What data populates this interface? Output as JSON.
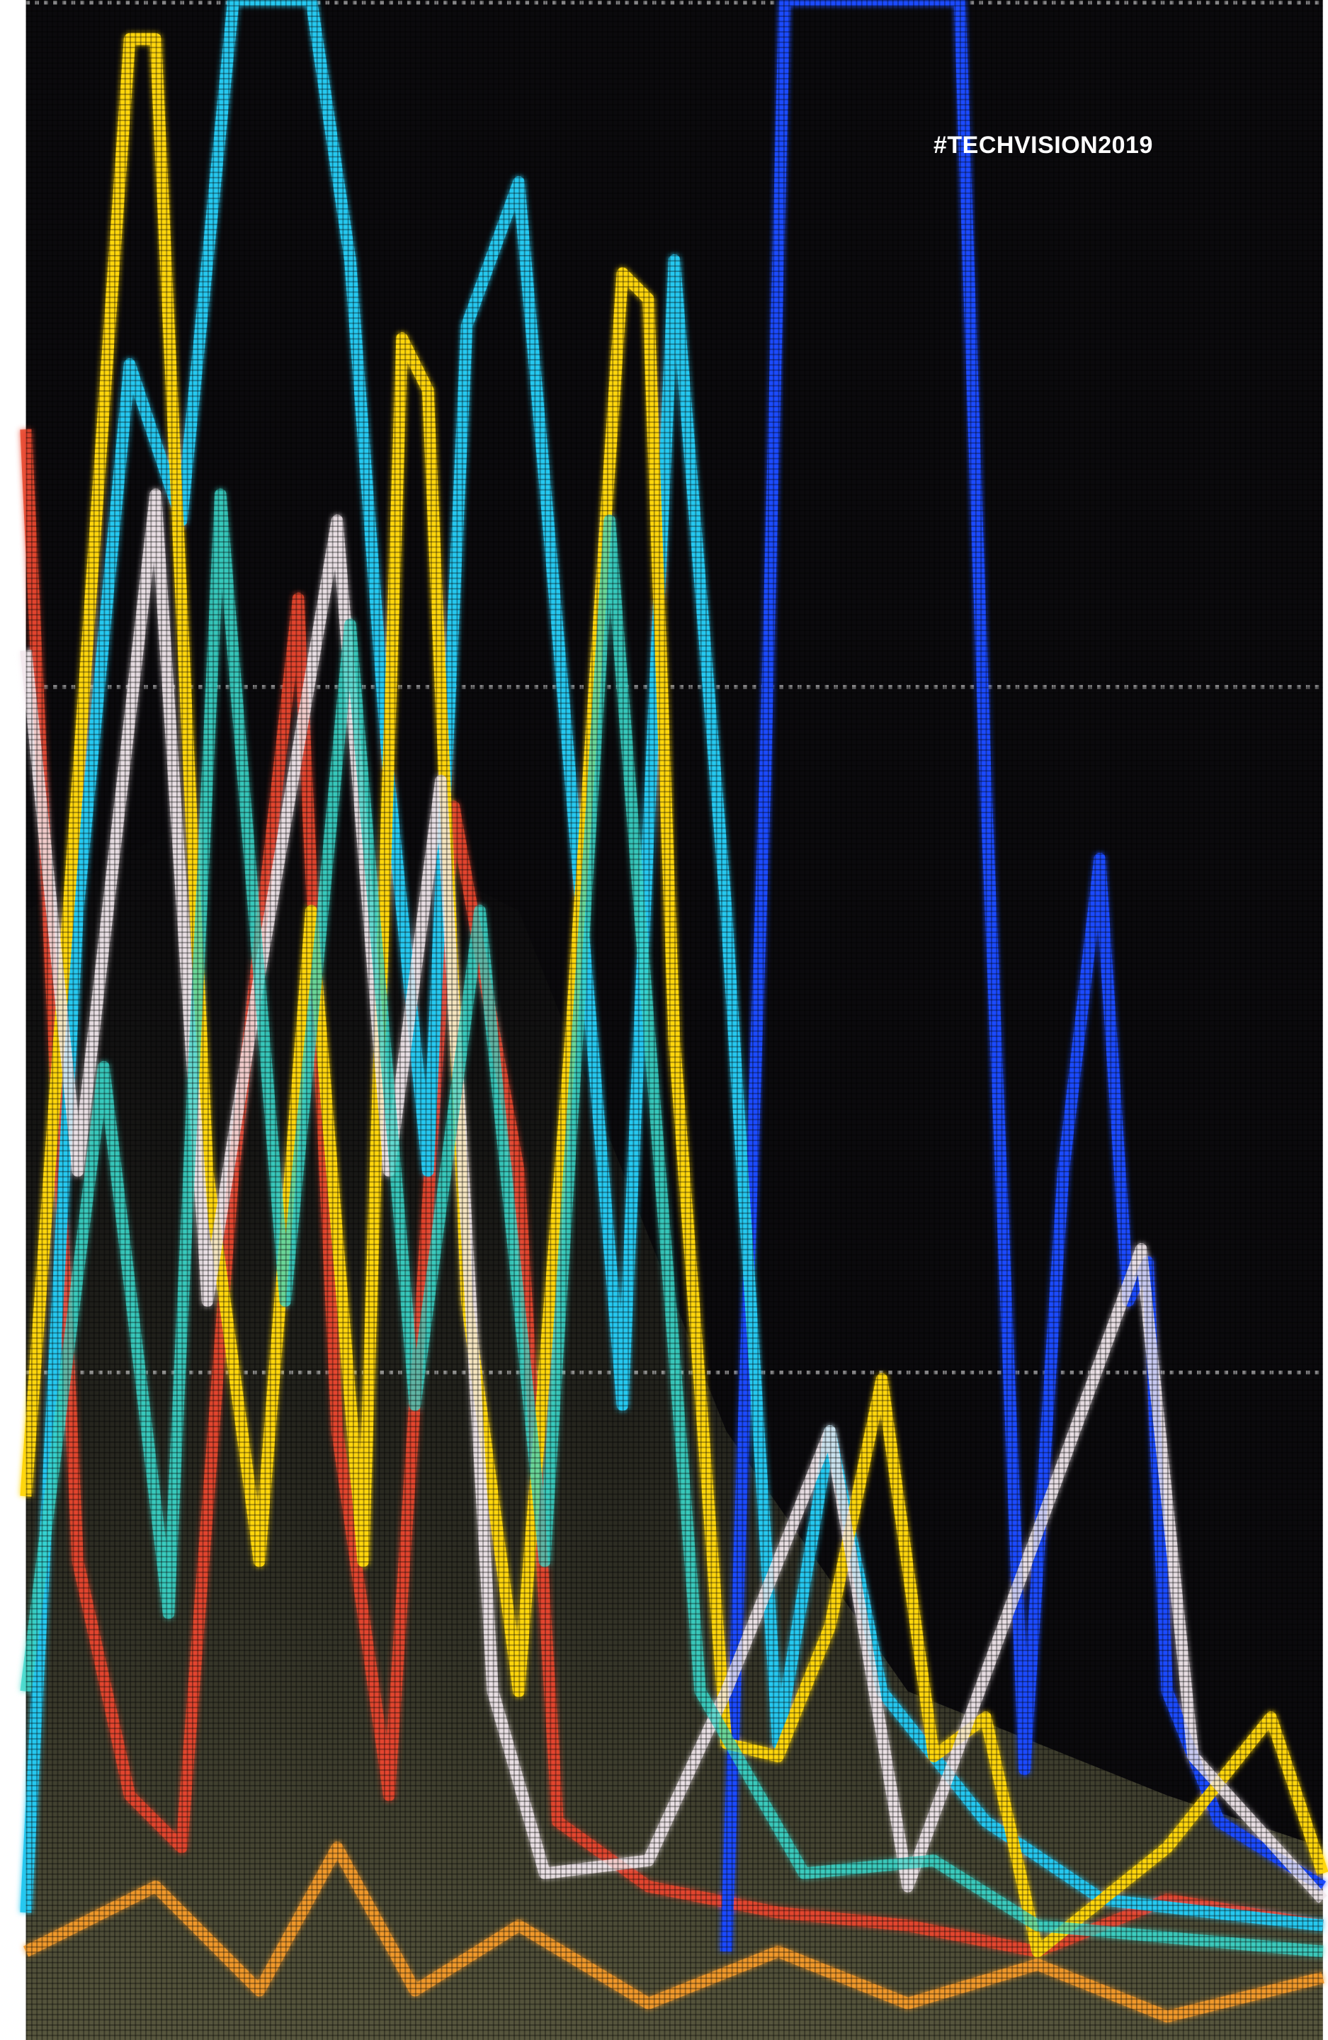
{
  "hashtag": "#TECHVISION2019"
}
